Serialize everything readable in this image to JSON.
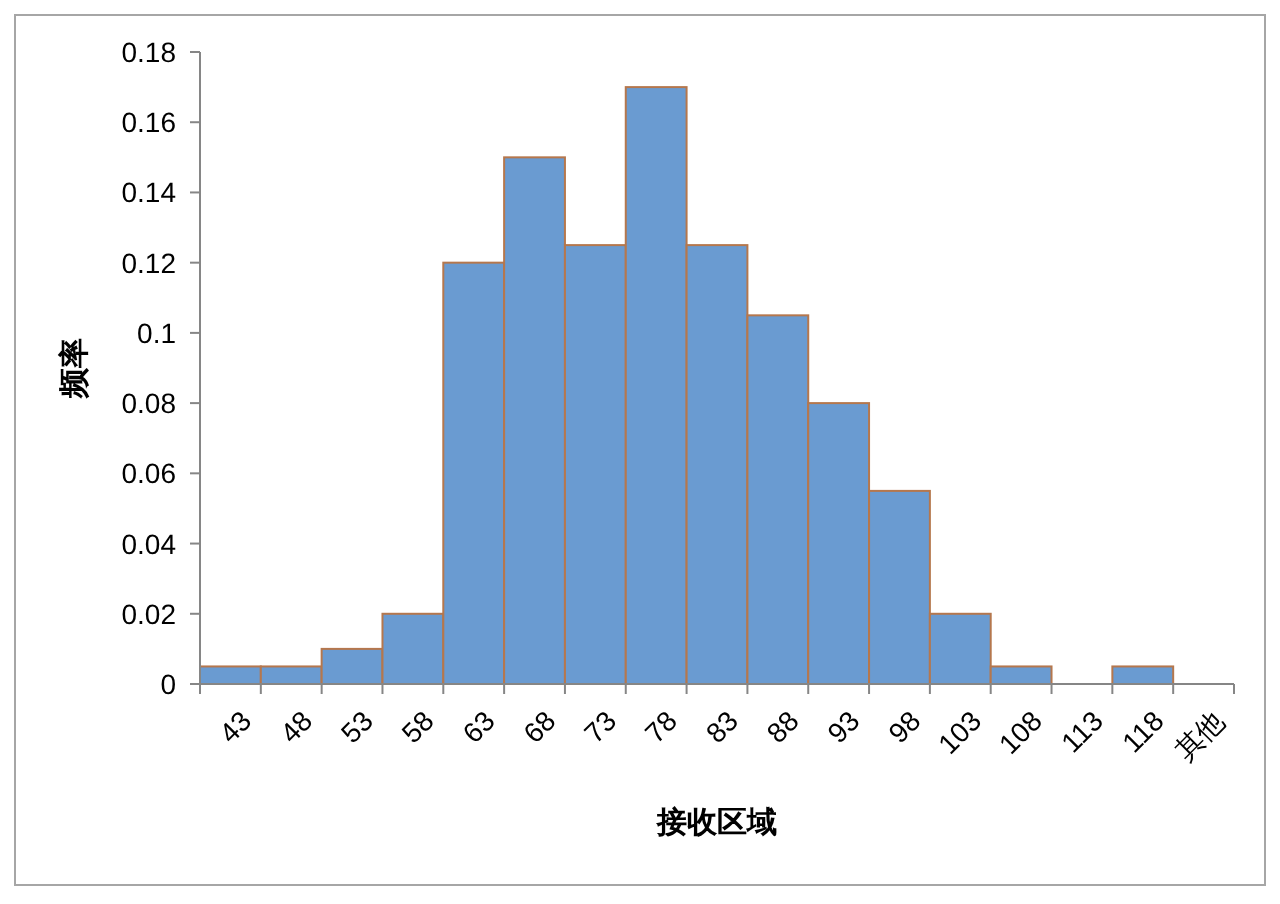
{
  "chart_data": {
    "type": "bar",
    "xlabel": "接收区域",
    "ylabel": "频率",
    "categories": [
      "43",
      "48",
      "53",
      "58",
      "63",
      "68",
      "73",
      "78",
      "83",
      "88",
      "93",
      "98",
      "103",
      "108",
      "113",
      "118",
      "其他"
    ],
    "values": [
      0.005,
      0.005,
      0.01,
      0.02,
      0.12,
      0.15,
      0.125,
      0.17,
      0.125,
      0.105,
      0.08,
      0.055,
      0.02,
      0.005,
      0,
      0.005,
      0
    ],
    "color": "#6a9bd1",
    "ylim": [
      0,
      0.18
    ],
    "yticks": [
      0,
      0.02,
      0.04,
      0.06,
      0.08,
      0.1,
      0.12,
      0.14,
      0.16,
      0.18
    ],
    "grid": false,
    "legend": false
  }
}
